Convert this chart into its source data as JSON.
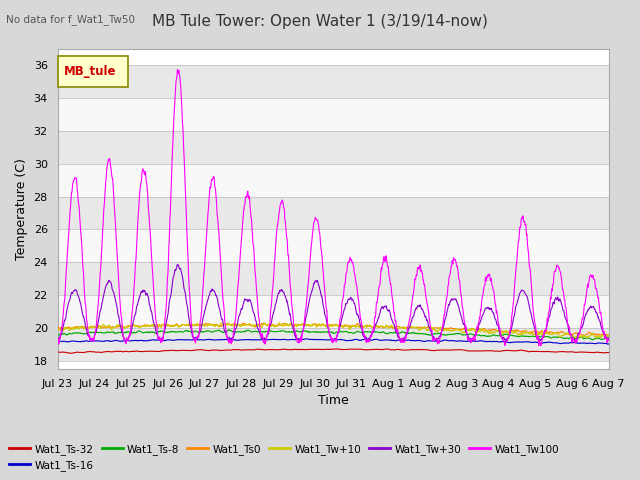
{
  "title": "MB Tule Tower: Open Water 1 (3/19/14-now)",
  "subtitle": "No data for f_Wat1_Tw50",
  "xlabel": "Time",
  "ylabel": "Temperature (C)",
  "ylim": [
    17.5,
    37
  ],
  "yticks": [
    18,
    20,
    22,
    24,
    26,
    28,
    30,
    32,
    34,
    36
  ],
  "legend_label": "MB_tule",
  "series_colors": {
    "Wat1_Ts-32": "#cc0000",
    "Wat1_Ts-16": "#0000cc",
    "Wat1_Ts-8": "#00aa00",
    "Wat1_Ts0": "#ff8800",
    "Wat1_Tw+10": "#cccc00",
    "Wat1_Tw+30": "#8800cc",
    "Wat1_Tw100": "#ff00ff"
  },
  "background_color": "#d8d8d8",
  "plot_bg_color": "#ffffff",
  "band_colors": [
    "#e8e8e8",
    "#f8f8f8"
  ],
  "grid_color": "#bbbbbb"
}
